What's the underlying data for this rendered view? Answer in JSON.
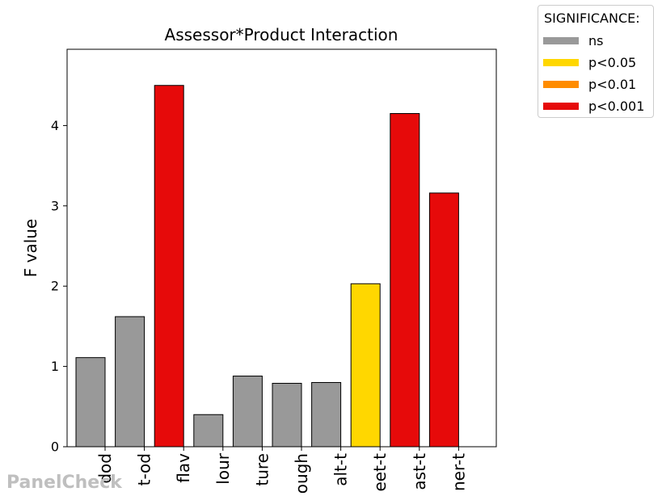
{
  "chart_data": {
    "type": "bar",
    "title": "Assessor*Product Interaction",
    "xlabel": "",
    "ylabel": "F value",
    "ylim": [
      0,
      4.95
    ],
    "yticks": [
      0,
      1,
      2,
      3,
      4
    ],
    "categories": [
      "dod",
      "t-od",
      "flav",
      "lour",
      "ture",
      "ough",
      "alt-t",
      "eet-t",
      "ast-t",
      "ner-t"
    ],
    "values": [
      1.11,
      1.62,
      4.5,
      0.4,
      0.88,
      0.79,
      0.8,
      2.03,
      4.15,
      3.16
    ],
    "significance": [
      "ns",
      "ns",
      "p<0.001",
      "ns",
      "ns",
      "ns",
      "ns",
      "p<0.05",
      "p<0.001",
      "p<0.001"
    ],
    "grid": false,
    "legend_position": "top-right outside"
  },
  "legend": {
    "title": "SIGNIFICANCE:",
    "items": [
      {
        "label": "ns",
        "color": "#999999"
      },
      {
        "label": "p<0.05",
        "color": "#ffd700"
      },
      {
        "label": "p<0.01",
        "color": "#ff8c00"
      },
      {
        "label": "p<0.001",
        "color": "#e60a0a"
      }
    ]
  },
  "watermark": "PanelCheck"
}
